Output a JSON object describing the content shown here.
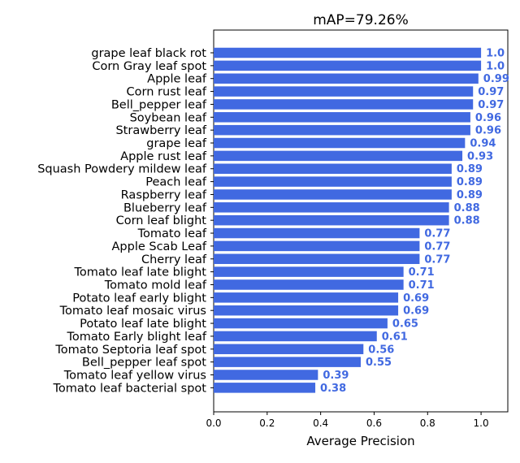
{
  "chart_data": {
    "type": "bar",
    "orientation": "horizontal",
    "title": "mAP=79.26%",
    "xlabel": "Average Precision",
    "ylabel": "",
    "xlim": [
      0,
      1.1
    ],
    "xticks": [
      "0.0",
      "0.2",
      "0.4",
      "0.6",
      "0.8",
      "1.0"
    ],
    "grid": false,
    "bar_color": "#4169e1",
    "label_color": "#4169e1",
    "categories": [
      "grape leaf black rot",
      "Corn Gray leaf spot",
      "Apple leaf",
      "Corn rust leaf",
      "Bell_pepper leaf",
      "Soybean leaf",
      "Strawberry leaf",
      "grape leaf",
      "Apple rust leaf",
      "Squash Powdery mildew leaf",
      "Peach leaf",
      "Raspberry leaf",
      "Blueberry leaf",
      "Corn leaf blight",
      "Tomato leaf",
      "Apple Scab Leaf",
      "Cherry leaf",
      "Tomato leaf late blight",
      "Tomato mold leaf",
      "Potato leaf early blight",
      "Tomato leaf mosaic virus",
      "Potato leaf late blight",
      "Tomato Early blight leaf",
      "Tomato Septoria leaf spot",
      "Bell_pepper leaf spot",
      "Tomato leaf yellow virus",
      "Tomato leaf bacterial spot"
    ],
    "values": [
      1.0,
      1.0,
      0.99,
      0.97,
      0.97,
      0.96,
      0.96,
      0.94,
      0.93,
      0.89,
      0.89,
      0.89,
      0.88,
      0.88,
      0.77,
      0.77,
      0.77,
      0.71,
      0.71,
      0.69,
      0.69,
      0.65,
      0.61,
      0.56,
      0.55,
      0.39,
      0.38
    ],
    "value_labels": [
      "1.0",
      "1.0",
      "0.99",
      "0.97",
      "0.97",
      "0.96",
      "0.96",
      "0.94",
      "0.93",
      "0.89",
      "0.89",
      "0.89",
      "0.88",
      "0.88",
      "0.77",
      "0.77",
      "0.77",
      "0.71",
      "0.71",
      "0.69",
      "0.69",
      "0.65",
      "0.61",
      "0.56",
      "0.55",
      "0.39",
      "0.38"
    ]
  }
}
